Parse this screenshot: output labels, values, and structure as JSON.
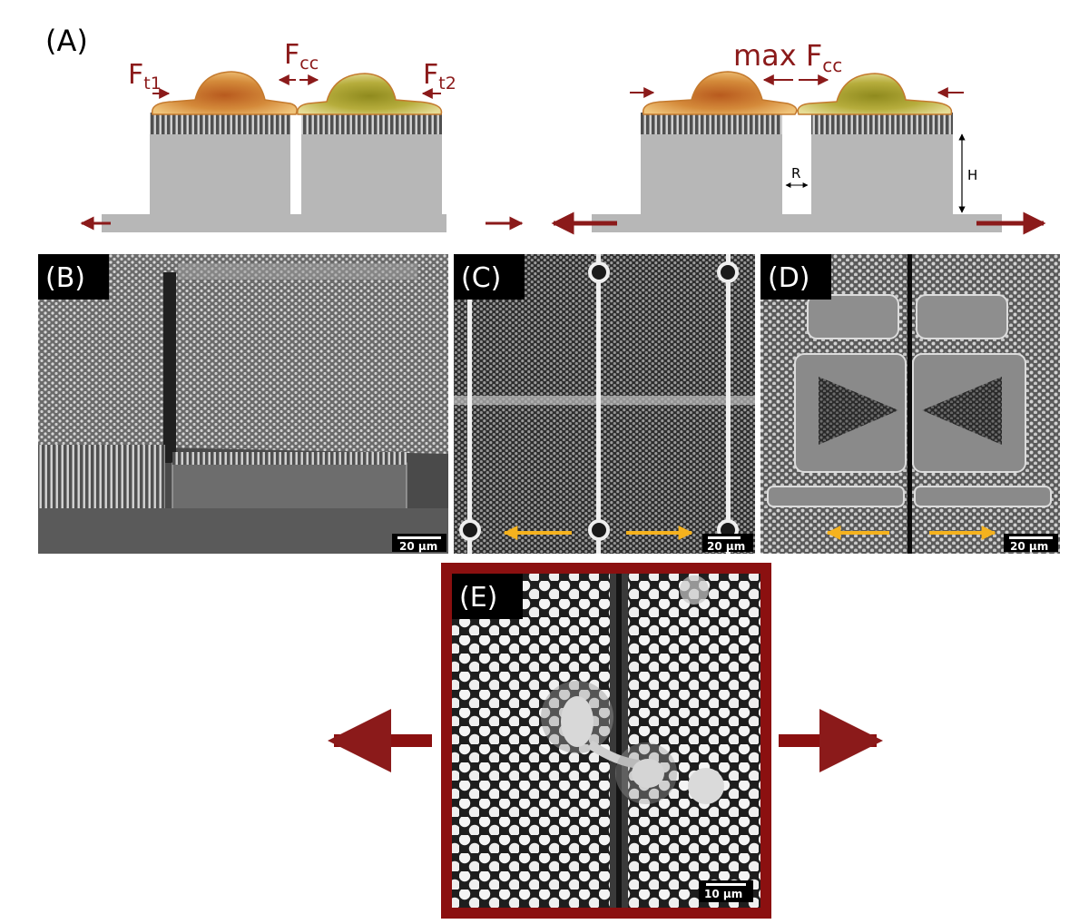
{
  "panels": {
    "a": {
      "label": "(A)",
      "left": {
        "force_t1": "F",
        "force_t1_sub": "t1",
        "force_cc": "F",
        "force_cc_sub": "cc",
        "force_t2": "F",
        "force_t2_sub": "t2"
      },
      "right": {
        "force_max_prefix": "max F",
        "force_max_sub": "cc",
        "gap_label": "R",
        "height_label": "H"
      }
    },
    "b": {
      "label": "(B)",
      "scale_bar": "20 µm"
    },
    "c": {
      "label": "(C)",
      "scale_bar": "20 µm"
    },
    "d": {
      "label": "(D)",
      "scale_bar": "20 µm"
    },
    "e": {
      "label": "(E)",
      "scale_bar": "10 µm"
    }
  },
  "colors": {
    "force_red": "#8b1a1a",
    "frame_red": "#8b1010",
    "block_gray": "#b7b7b7",
    "arrow_yellow": "#f5b21e",
    "cell_orange": "#d08a3c",
    "cell_olive": "#a6a13a"
  }
}
